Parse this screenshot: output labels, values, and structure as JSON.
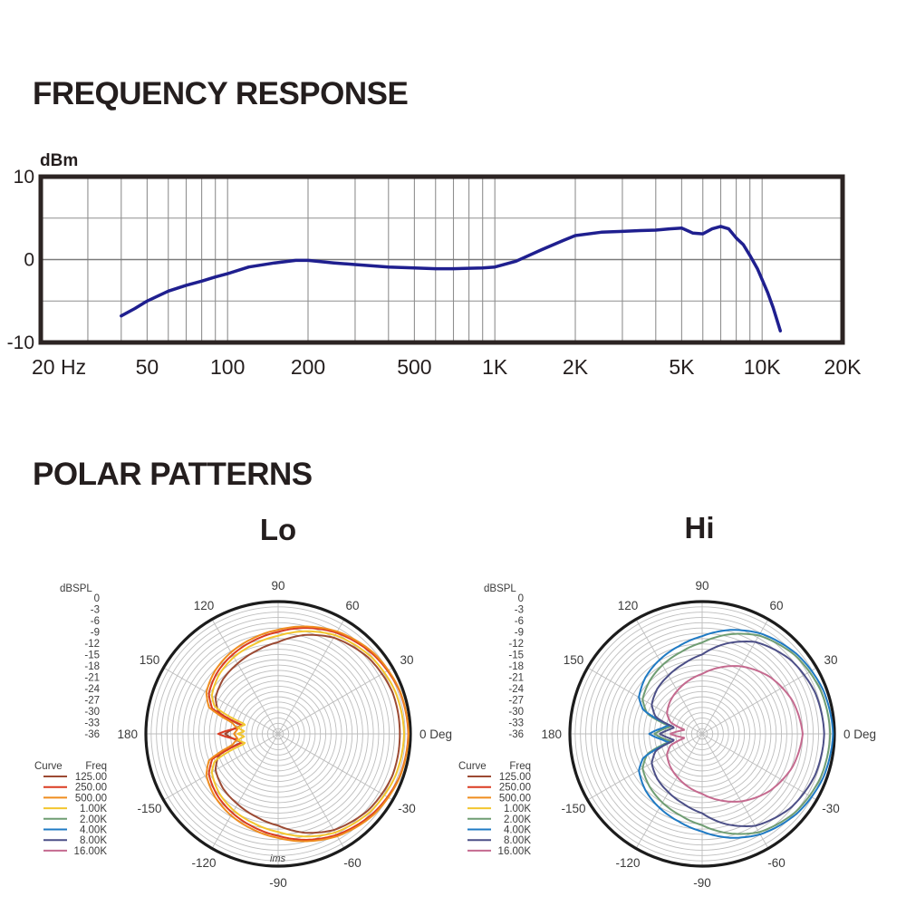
{
  "headings": {
    "frequency_response": "FREQUENCY RESPONSE",
    "polar_patterns": "POLAR PATTERNS"
  },
  "colors": {
    "ink": "#241e1e",
    "fr_curve": "#1f1f8f",
    "fr_border": "#2c2423",
    "grid_gray": "#8f8f8f",
    "polar_grid": "#bdbdbd",
    "polar_outer": "#1c1c1c",
    "label_gray": "#3b3b3b"
  },
  "chart_data": [
    {
      "type": "line",
      "title": "FREQUENCY RESPONSE",
      "ylabel": "dBm",
      "xlabel": "Hz",
      "x_scale": "log",
      "xlim": [
        20,
        20000
      ],
      "ylim": [
        -10,
        10
      ],
      "grid": true,
      "x_ticks": [
        20,
        50,
        100,
        200,
        500,
        1000,
        2000,
        5000,
        10000,
        20000
      ],
      "x_tick_labels": [
        "20 Hz",
        "50",
        "100",
        "200",
        "500",
        "1K",
        "2K",
        "5K",
        "10K",
        "20K"
      ],
      "y_ticks": [
        10,
        0,
        -10
      ],
      "y_tick_labels": [
        "10",
        "0",
        "-10"
      ],
      "grid_freqs": [
        30,
        40,
        50,
        60,
        70,
        80,
        90,
        100,
        200,
        300,
        400,
        500,
        600,
        700,
        800,
        900,
        1000,
        2000,
        3000,
        4000,
        5000,
        6000,
        7000,
        8000,
        9000,
        10000
      ],
      "grid_db": [
        5,
        0,
        -5
      ],
      "line_color": "#1f1f8f",
      "series": [
        {
          "name": "frequency response (dBm)",
          "x": [
            40,
            45,
            50,
            60,
            70,
            80,
            90,
            100,
            120,
            150,
            180,
            200,
            250,
            300,
            400,
            500,
            600,
            700,
            800,
            900,
            1000,
            1200,
            1500,
            1800,
            2000,
            2500,
            3000,
            3500,
            4000,
            4500,
            5000,
            5500,
            6000,
            6500,
            7000,
            7500,
            8000,
            8500,
            9000,
            9600,
            10500,
            11000,
            11700
          ],
          "y": [
            -6.8,
            -5.9,
            -5.0,
            -3.8,
            -3.1,
            -2.6,
            -2.1,
            -1.7,
            -0.9,
            -0.4,
            -0.1,
            -0.1,
            -0.4,
            -0.6,
            -0.9,
            -1.0,
            -1.1,
            -1.1,
            -1.05,
            -1.0,
            -0.9,
            -0.2,
            1.2,
            2.3,
            2.9,
            3.3,
            3.4,
            3.5,
            3.55,
            3.7,
            3.8,
            3.2,
            3.1,
            3.7,
            4.0,
            3.7,
            2.6,
            1.8,
            0.5,
            -1.1,
            -4.0,
            -5.8,
            -8.6
          ]
        }
      ]
    },
    {
      "type": "polar",
      "title": "Lo",
      "radial_axis_label": "dBSPL",
      "radial_ticks": [
        "0",
        "-3",
        "-6",
        "-9",
        "-12",
        "-15",
        "-18",
        "-21",
        "-24",
        "-27",
        "-30",
        "-33",
        "-36"
      ],
      "radial_range": [
        0,
        -36
      ],
      "grid_step_db": 1.5,
      "zero_label": "0 Deg",
      "watermark": "ims",
      "angle_labels": [
        {
          "deg": 90,
          "text": "90"
        },
        {
          "deg": 120,
          "text": "120"
        },
        {
          "deg": 60,
          "text": "60"
        },
        {
          "deg": 150,
          "text": "150"
        },
        {
          "deg": 30,
          "text": "30"
        },
        {
          "deg": 180,
          "text": "180"
        },
        {
          "deg": 0,
          "text": "0 Deg"
        },
        {
          "deg": -150,
          "text": "-150"
        },
        {
          "deg": -30,
          "text": "-30"
        },
        {
          "deg": -120,
          "text": "-120"
        },
        {
          "deg": -60,
          "text": "-60"
        },
        {
          "deg": -90,
          "text": "-90"
        }
      ],
      "legend": {
        "curve_header": "Curve",
        "freq_header": "Freq"
      },
      "series": [
        {
          "name": "125.00",
          "color": "#9c4a33",
          "points_deg_db": [
            [
              0,
              -3
            ],
            [
              20,
              -3
            ],
            [
              40,
              -4
            ],
            [
              60,
              -6
            ],
            [
              75,
              -8.5
            ],
            [
              90,
              -11.5
            ],
            [
              105,
              -13.2
            ],
            [
              120,
              -14.5
            ],
            [
              135,
              -15.5
            ],
            [
              150,
              -17
            ],
            [
              160,
              -19.5
            ],
            [
              167,
              -27
            ],
            [
              173,
              -25
            ],
            [
              180,
              -22.5
            ]
          ]
        },
        {
          "name": "250.00",
          "color": "#da3b21",
          "points_deg_db": [
            [
              0,
              -0.6
            ],
            [
              20,
              -1
            ],
            [
              40,
              -2.4
            ],
            [
              60,
              -4.4
            ],
            [
              75,
              -6.4
            ],
            [
              90,
              -8.6
            ],
            [
              105,
              -10.2
            ],
            [
              120,
              -11.6
            ],
            [
              135,
              -13
            ],
            [
              150,
              -14.8
            ],
            [
              159,
              -17.5
            ],
            [
              166,
              -27
            ],
            [
              172,
              -26
            ],
            [
              180,
              -20.5
            ]
          ]
        },
        {
          "name": "500.00",
          "color": "#ef8d1f",
          "points_deg_db": [
            [
              0,
              -0.5
            ],
            [
              20,
              -0.9
            ],
            [
              40,
              -2
            ],
            [
              60,
              -4
            ],
            [
              75,
              -6
            ],
            [
              90,
              -8
            ],
            [
              105,
              -9.5
            ],
            [
              120,
              -10.8
            ],
            [
              135,
              -12.2
            ],
            [
              150,
              -14
            ],
            [
              159,
              -16.5
            ],
            [
              166,
              -24
            ],
            [
              173,
              -26
            ],
            [
              180,
              -25
            ]
          ]
        },
        {
          "name": "1.00K",
          "color": "#f3c62e",
          "points_deg_db": [
            [
              0,
              -1.8
            ],
            [
              20,
              -2.2
            ],
            [
              40,
              -3.3
            ],
            [
              60,
              -5.2
            ],
            [
              75,
              -7.4
            ],
            [
              90,
              -9.7
            ],
            [
              105,
              -11.2
            ],
            [
              120,
              -12.4
            ],
            [
              135,
              -13.8
            ],
            [
              150,
              -15.8
            ],
            [
              157,
              -18
            ],
            [
              164,
              -28
            ],
            [
              171,
              -26
            ],
            [
              176,
              -28
            ],
            [
              180,
              -26
            ]
          ]
        }
      ],
      "legend_extra_series": [
        {
          "name": "2.00K",
          "color": "#6f9d72"
        },
        {
          "name": "4.00K",
          "color": "#1f7ac4"
        },
        {
          "name": "8.00K",
          "color": "#4c4f87"
        },
        {
          "name": "16.00K",
          "color": "#c56a8f"
        }
      ]
    },
    {
      "type": "polar",
      "title": "Hi",
      "radial_axis_label": "dBSPL",
      "radial_ticks": [
        "0",
        "-3",
        "-6",
        "-9",
        "-12",
        "-15",
        "-18",
        "-21",
        "-24",
        "-27",
        "-30",
        "-33",
        "-36"
      ],
      "radial_range": [
        0,
        -36
      ],
      "grid_step_db": 1.5,
      "zero_label": "0 Deg",
      "watermark": "",
      "angle_labels": [
        {
          "deg": 90,
          "text": "90"
        },
        {
          "deg": 120,
          "text": "120"
        },
        {
          "deg": 60,
          "text": "60"
        },
        {
          "deg": 150,
          "text": "150"
        },
        {
          "deg": 30,
          "text": "30"
        },
        {
          "deg": 180,
          "text": "180"
        },
        {
          "deg": 0,
          "text": "0 Deg"
        },
        {
          "deg": -150,
          "text": "-150"
        },
        {
          "deg": -30,
          "text": "-30"
        },
        {
          "deg": -120,
          "text": "-120"
        },
        {
          "deg": -60,
          "text": "-60"
        },
        {
          "deg": -90,
          "text": "-90"
        }
      ],
      "legend": {
        "curve_header": "Curve",
        "freq_header": "Freq"
      },
      "legend_extra_series": [
        {
          "name": "125.00",
          "color": "#9c4a33"
        },
        {
          "name": "250.00",
          "color": "#da3b21"
        },
        {
          "name": "500.00",
          "color": "#ef8d1f"
        },
        {
          "name": "1.00K",
          "color": "#f3c62e"
        }
      ],
      "series": [
        {
          "name": "2.00K",
          "color": "#6f9d72",
          "points_deg_db": [
            [
              0,
              -1.2
            ],
            [
              20,
              -1.7
            ],
            [
              40,
              -3
            ],
            [
              60,
              -5.3
            ],
            [
              75,
              -8.3
            ],
            [
              90,
              -11.6
            ],
            [
              105,
              -13.6
            ],
            [
              120,
              -15
            ],
            [
              135,
              -16.4
            ],
            [
              150,
              -18
            ],
            [
              160,
              -21
            ],
            [
              167,
              -28.5
            ],
            [
              173,
              -26.5
            ],
            [
              180,
              -24
            ]
          ]
        },
        {
          "name": "4.00K",
          "color": "#1f7ac4",
          "points_deg_db": [
            [
              0,
              -0.4
            ],
            [
              20,
              -1
            ],
            [
              40,
              -2.4
            ],
            [
              60,
              -4.6
            ],
            [
              75,
              -7
            ],
            [
              90,
              -9.8
            ],
            [
              105,
              -11.8
            ],
            [
              120,
              -13.3
            ],
            [
              135,
              -14.8
            ],
            [
              150,
              -16.8
            ],
            [
              158,
              -19.5
            ],
            [
              165,
              -28
            ],
            [
              172,
              -26
            ],
            [
              180,
              -22.5
            ]
          ]
        },
        {
          "name": "8.00K",
          "color": "#4c4f87",
          "points_deg_db": [
            [
              0,
              -2.9
            ],
            [
              20,
              -3.4
            ],
            [
              40,
              -4.8
            ],
            [
              60,
              -7.4
            ],
            [
              75,
              -11
            ],
            [
              90,
              -15
            ],
            [
              105,
              -17
            ],
            [
              120,
              -18.4
            ],
            [
              135,
              -19.5
            ],
            [
              150,
              -21
            ],
            [
              160,
              -23.5
            ],
            [
              167,
              -29.5
            ],
            [
              173,
              -28
            ],
            [
              180,
              -25.5
            ]
          ]
        },
        {
          "name": "16.00K",
          "color": "#c56a8f",
          "points_deg_db": [
            [
              0,
              -9
            ],
            [
              20,
              -10.2
            ],
            [
              40,
              -12.4
            ],
            [
              60,
              -15.4
            ],
            [
              75,
              -18
            ],
            [
              90,
              -20.5
            ],
            [
              105,
              -22
            ],
            [
              120,
              -23.4
            ],
            [
              135,
              -24.6
            ],
            [
              150,
              -26
            ],
            [
              160,
              -28
            ],
            [
              167,
              -32.5
            ],
            [
              173,
              -31
            ],
            [
              180,
              -28.5
            ]
          ]
        }
      ]
    }
  ]
}
